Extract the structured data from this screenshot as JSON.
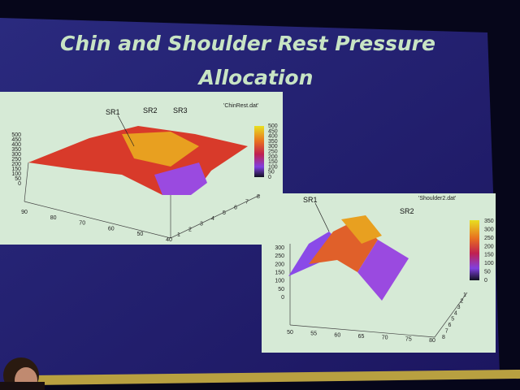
{
  "slide": {
    "title": [
      "Chin and Shoulder Rest Pressure",
      "Allocation"
    ],
    "plots": [
      {
        "file": "'ChinRest.dat'",
        "labels": [
          "SR1",
          "SR2",
          "SR3"
        ],
        "z_ticks": [
          500,
          450,
          400,
          350,
          300,
          250,
          200,
          150,
          100,
          50,
          0
        ],
        "colorbar_ticks": [
          500,
          450,
          400,
          350,
          300,
          250,
          200,
          150,
          100,
          50,
          0
        ],
        "x_ticks": [
          90,
          80,
          70,
          60,
          50,
          40
        ],
        "y_ticks": [
          1,
          2,
          3,
          4,
          5,
          6,
          7,
          8
        ]
      },
      {
        "file": "'Shoulder2.dat'",
        "labels": [
          "SR1",
          "SR2"
        ],
        "z_ticks": [
          300,
          250,
          200,
          150,
          100,
          50,
          0
        ],
        "colorbar_ticks": [
          350,
          300,
          250,
          200,
          150,
          100,
          50,
          0
        ],
        "x_ticks": [
          50,
          55,
          60,
          65,
          70,
          75,
          80
        ],
        "y_ticks": [
          1,
          2,
          3,
          4,
          5,
          6,
          7,
          8
        ]
      }
    ]
  }
}
